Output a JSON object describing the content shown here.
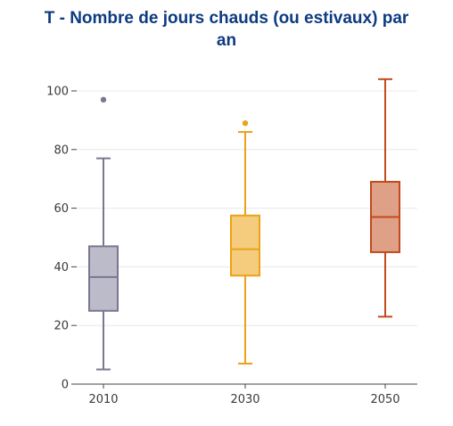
{
  "title_lines": [
    "T - Nombre de jours chauds (ou estivaux) par",
    "an"
  ],
  "chart_data": {
    "type": "box",
    "title": "T - Nombre de jours chauds (ou estivaux) par an",
    "xlabel": "",
    "ylabel": "",
    "ylim": [
      0,
      105
    ],
    "yticks": [
      0,
      20,
      40,
      60,
      80,
      100
    ],
    "grid": true,
    "categories": [
      "2010",
      "2030",
      "2050"
    ],
    "boxes": [
      {
        "category": "2010",
        "min": 5,
        "q1": 25,
        "median": 36.5,
        "q3": 47,
        "max": 77,
        "outliers": [
          97
        ],
        "color": "#7a7890",
        "fill": "#bcbbca"
      },
      {
        "category": "2030",
        "min": 7,
        "q1": 37,
        "median": 46,
        "q3": 57.5,
        "max": 86,
        "outliers": [
          89
        ],
        "color": "#eaa318",
        "fill": "#f5cb7d"
      },
      {
        "category": "2050",
        "min": 23,
        "q1": 45,
        "median": 57,
        "q3": 69,
        "max": 104,
        "outliers": [],
        "color": "#c24a1c",
        "fill": "#dfa088"
      }
    ]
  }
}
